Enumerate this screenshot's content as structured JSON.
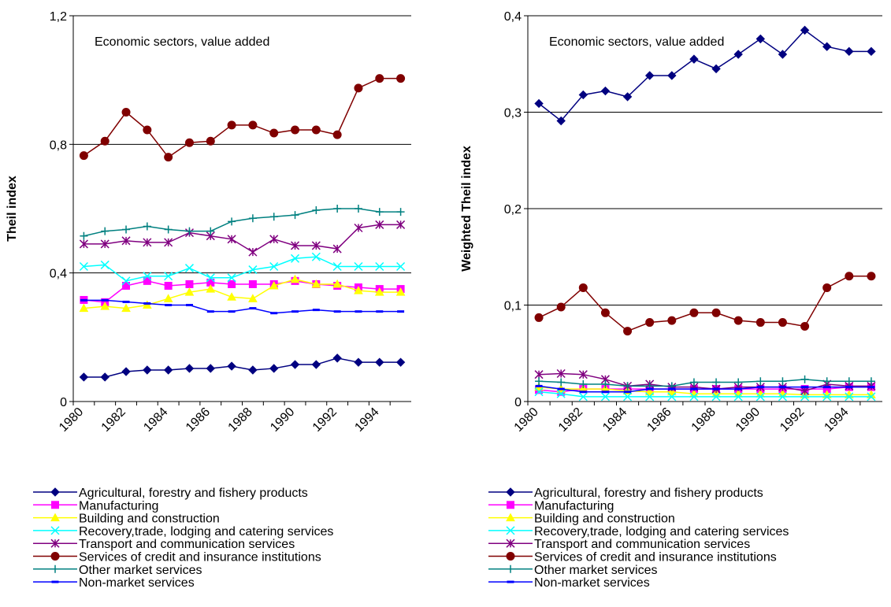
{
  "chart_data": [
    {
      "type": "line",
      "annotation": "Economic sectors, value added",
      "y_label": "Theil index",
      "categories": [
        "1980",
        null,
        "1982",
        null,
        "1984",
        null,
        "1986",
        null,
        "1988",
        null,
        "1990",
        null,
        "1992",
        null,
        "1994",
        null
      ],
      "ylim": [
        0,
        1.2
      ],
      "yticks": [
        0,
        {
          "value": 0.4,
          "label": "0,4"
        },
        {
          "value": 0.8,
          "label": "0,8"
        },
        {
          "value": 1.2,
          "label": "1,2"
        }
      ],
      "grid": true,
      "legend": "bottom",
      "series": [
        {
          "name": "Agricultural, forestry and fishery products",
          "color": "#000080",
          "marker": "diamond",
          "values": [
            0.076,
            0.076,
            0.093,
            0.098,
            0.098,
            0.103,
            0.103,
            0.11,
            0.098,
            0.103,
            0.115,
            0.115,
            0.135,
            0.122,
            0.122,
            0.122
          ]
        },
        {
          "name": "Manufacturing",
          "color": "#ff00ff",
          "marker": "square",
          "values": [
            0.316,
            0.309,
            0.36,
            0.375,
            0.36,
            0.365,
            0.37,
            0.365,
            0.365,
            0.365,
            0.375,
            0.365,
            0.36,
            0.355,
            0.35,
            0.35
          ]
        },
        {
          "name": "Building and construction",
          "color": "#ffff00",
          "marker": "triangle",
          "values": [
            0.29,
            0.296,
            0.29,
            0.3,
            0.32,
            0.34,
            0.35,
            0.325,
            0.32,
            0.36,
            0.38,
            0.365,
            0.365,
            0.345,
            0.34,
            0.34
          ]
        },
        {
          "name": "Recovery,trade, lodging and catering services",
          "color": "#00ffff",
          "marker": "x",
          "values": [
            0.42,
            0.425,
            0.375,
            0.39,
            0.39,
            0.415,
            0.385,
            0.385,
            0.41,
            0.42,
            0.445,
            0.45,
            0.42,
            0.42,
            0.42,
            0.42
          ]
        },
        {
          "name": "Transport and communication services",
          "color": "#800080",
          "marker": "star",
          "values": [
            0.49,
            0.49,
            0.5,
            0.495,
            0.495,
            0.525,
            0.515,
            0.505,
            0.465,
            0.505,
            0.485,
            0.485,
            0.475,
            0.54,
            0.55,
            0.55
          ]
        },
        {
          "name": "Services of credit and insurance institutions",
          "color": "#800000",
          "marker": "circle",
          "values": [
            0.765,
            0.81,
            0.9,
            0.845,
            0.76,
            0.805,
            0.81,
            0.86,
            0.86,
            0.835,
            0.845,
            0.845,
            0.83,
            0.975,
            1.005,
            1.005
          ]
        },
        {
          "name": "Other market services",
          "color": "#008080",
          "marker": "plus",
          "values": [
            0.515,
            0.53,
            0.535,
            0.545,
            0.535,
            0.53,
            0.53,
            0.56,
            0.57,
            0.575,
            0.58,
            0.595,
            0.6,
            0.6,
            0.59,
            0.59
          ]
        },
        {
          "name": "Non-market services",
          "color": "#0000ff",
          "marker": "dash",
          "values": [
            0.315,
            0.315,
            0.31,
            0.305,
            0.3,
            0.3,
            0.28,
            0.28,
            0.29,
            0.275,
            0.28,
            0.285,
            0.28,
            0.28,
            0.28,
            0.28
          ]
        }
      ]
    },
    {
      "type": "line",
      "annotation": "Economic sectors, value added",
      "y_label": "Weighted Theil index",
      "categories": [
        "1980",
        null,
        "1982",
        null,
        "1984",
        null,
        "1986",
        null,
        "1988",
        null,
        "1990",
        null,
        "1992",
        null,
        "1994",
        null
      ],
      "ylim": [
        0,
        0.4
      ],
      "yticks": [
        0,
        {
          "value": 0.1,
          "label": "0,1"
        },
        {
          "value": 0.2,
          "label": "0,2"
        },
        {
          "value": 0.3,
          "label": "0,3"
        },
        {
          "value": 0.4,
          "label": "0,4"
        }
      ],
      "grid": true,
      "legend": "bottom",
      "series": [
        {
          "name": "Agricultural, forestry and fishery products",
          "color": "#000080",
          "marker": "diamond",
          "values": [
            0.309,
            0.291,
            0.318,
            0.322,
            0.316,
            0.338,
            0.338,
            0.355,
            0.345,
            0.36,
            0.376,
            0.36,
            0.385,
            0.368,
            0.363,
            0.363
          ]
        },
        {
          "name": "Manufacturing",
          "color": "#ff00ff",
          "marker": "square",
          "values": [
            0.012,
            0.01,
            0.013,
            0.013,
            0.013,
            0.013,
            0.013,
            0.013,
            0.013,
            0.013,
            0.013,
            0.013,
            0.013,
            0.013,
            0.015,
            0.015
          ]
        },
        {
          "name": "Building and construction",
          "color": "#ffff00",
          "marker": "triangle",
          "values": [
            0.015,
            0.013,
            0.013,
            0.013,
            0.011,
            0.01,
            0.01,
            0.008,
            0.008,
            0.008,
            0.008,
            0.008,
            0.007,
            0.007,
            0.007,
            0.007
          ]
        },
        {
          "name": "Recovery,trade, lodging and catering services",
          "color": "#00ffff",
          "marker": "x",
          "values": [
            0.01,
            0.008,
            0.005,
            0.005,
            0.005,
            0.005,
            0.005,
            0.005,
            0.005,
            0.005,
            0.005,
            0.005,
            0.005,
            0.005,
            0.005,
            0.005
          ]
        },
        {
          "name": "Transport and communication services",
          "color": "#800080",
          "marker": "star",
          "values": [
            0.028,
            0.029,
            0.028,
            0.023,
            0.016,
            0.018,
            0.015,
            0.015,
            0.013,
            0.015,
            0.015,
            0.015,
            0.011,
            0.018,
            0.016,
            0.016
          ]
        },
        {
          "name": "Services of credit and insurance institutions",
          "color": "#800000",
          "marker": "circle",
          "values": [
            0.087,
            0.098,
            0.118,
            0.092,
            0.073,
            0.082,
            0.084,
            0.092,
            0.092,
            0.084,
            0.082,
            0.082,
            0.078,
            0.118,
            0.13,
            0.13
          ]
        },
        {
          "name": "Other market services",
          "color": "#008080",
          "marker": "plus",
          "values": [
            0.021,
            0.02,
            0.018,
            0.018,
            0.016,
            0.016,
            0.016,
            0.02,
            0.02,
            0.02,
            0.021,
            0.021,
            0.023,
            0.021,
            0.021,
            0.021
          ]
        },
        {
          "name": "Non-market services",
          "color": "#0000ff",
          "marker": "dash",
          "values": [
            0.016,
            0.013,
            0.01,
            0.01,
            0.01,
            0.013,
            0.013,
            0.013,
            0.013,
            0.013,
            0.015,
            0.015,
            0.015,
            0.015,
            0.015,
            0.015
          ]
        }
      ]
    }
  ]
}
